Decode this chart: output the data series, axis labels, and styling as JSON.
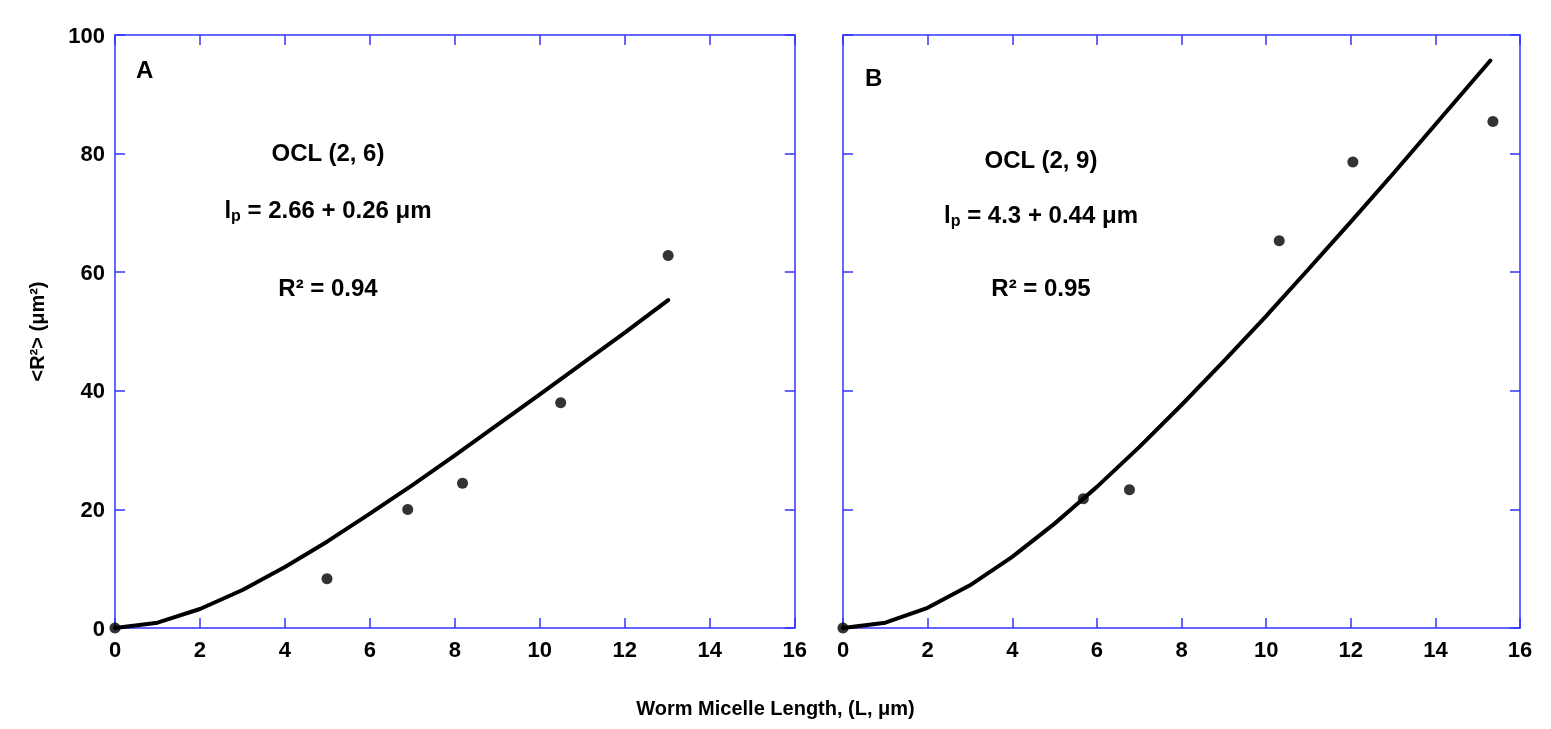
{
  "chart_data": [
    {
      "type": "scatter",
      "xlabel": "Worm Micelle Length, (L, μm)",
      "ylabel": "<R²> (μm²)",
      "xlim": [
        0,
        16
      ],
      "xticks": [
        0,
        2,
        4,
        6,
        8,
        10,
        12,
        14,
        16
      ],
      "ylim": [
        0,
        100
      ],
      "yticks": [
        0,
        20,
        40,
        60,
        80,
        100
      ],
      "marker": "circle",
      "annotations": [
        "A",
        "OCL (2, 6)",
        "l$_{p}$ = 2.66 + 0.26 μm",
        "R² = 0.94"
      ],
      "series": [
        {
          "color": "#000000",
          "x": [
            0,
            4.99,
            6.89,
            8.18,
            10.49,
            13.02
          ],
          "values": [
            0,
            8.3,
            20.0,
            24.4,
            38.0,
            62.8
          ]
        },
        {
          "type": "line",
          "color": "#000000",
          "marker": "none",
          "line_style": "solid",
          "x": [
            0,
            1,
            2,
            3,
            4,
            5,
            6,
            7,
            8,
            10,
            12,
            13.02
          ],
          "values": [
            0,
            0.9,
            3.2,
            6.4,
            10.3,
            14.6,
            19.3,
            24.1,
            29.1,
            39.4,
            49.8,
            55.3
          ]
        }
      ]
    },
    {
      "type": "scatter",
      "xlim": [
        0,
        16
      ],
      "xticks": [
        0,
        2,
        4,
        6,
        8,
        10,
        12,
        14,
        16
      ],
      "ylim": [
        0,
        100
      ],
      "yticks": [
        0,
        20,
        40,
        60,
        80,
        100
      ],
      "tick_labels": "x",
      "marker": "circle",
      "annotations": [
        "B",
        "OCL (2, 9)",
        "l$_{p}$ = 4.3 + 0.44 μm",
        "R² = 0.95"
      ],
      "series": [
        {
          "color": "#000000",
          "x": [
            0,
            5.68,
            6.77,
            10.31,
            12.05,
            15.36
          ],
          "values": [
            0,
            21.8,
            23.3,
            65.3,
            78.6,
            85.4
          ]
        },
        {
          "type": "line",
          "color": "#000000",
          "marker": "none",
          "line_style": "solid",
          "x": [
            0,
            1,
            2,
            3,
            4,
            5,
            6,
            7,
            8,
            9,
            10,
            11,
            12,
            13,
            14,
            15.3
          ],
          "values": [
            0,
            0.9,
            3.4,
            7.2,
            12.0,
            17.6,
            23.8,
            30.5,
            37.6,
            45.0,
            52.6,
            60.5,
            68.5,
            76.6,
            84.9,
            95.7
          ]
        }
      ]
    }
  ]
}
